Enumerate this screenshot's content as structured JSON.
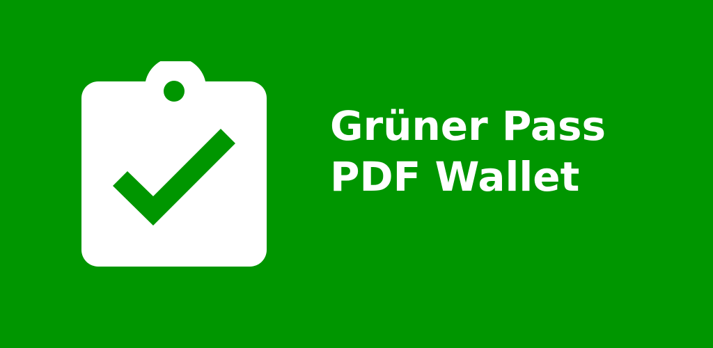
{
  "app": {
    "title_line_1": "Grüner Pass",
    "title_line_2": "PDF Wallet"
  },
  "icons": {
    "logo": "clipboard-check-icon"
  },
  "colors": {
    "background": "#009600",
    "foreground": "#ffffff"
  }
}
